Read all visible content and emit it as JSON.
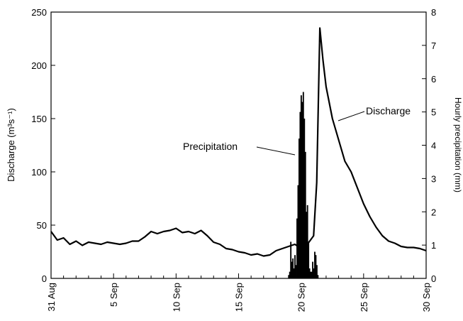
{
  "chart_data": {
    "type": "line",
    "ylabel": "Discharge (m³s⁻¹)",
    "y2label": "Hourly precipitation (mm)",
    "ylim": [
      0,
      250
    ],
    "y2lim": [
      0,
      8
    ],
    "xlim": [
      "31 Aug",
      "30 Sep"
    ],
    "y_ticks": [
      "0",
      "50",
      "100",
      "150",
      "200",
      "250"
    ],
    "y2_ticks": [
      "0",
      "1",
      "2",
      "3",
      "4",
      "5",
      "6",
      "7",
      "8"
    ],
    "x_ticks": [
      {
        "date": "31 Aug",
        "label": "31 Aug"
      },
      {
        "date": "5 Sep",
        "label": "5 Sep"
      },
      {
        "date": "10 Sep",
        "label": "10 Sep"
      },
      {
        "date": "15 Sep",
        "label": "15 Sep"
      },
      {
        "date": "20 Sep",
        "label": "20 Sep"
      },
      {
        "date": "25 Sep",
        "label": "25 Sep"
      },
      {
        "date": "30 Sep",
        "label": "30 Sep"
      }
    ],
    "grid": false,
    "annotations": [
      "Precipitation",
      "Discharge"
    ],
    "series": [
      {
        "name": "Discharge",
        "axis": "left",
        "style": "line",
        "x": [
          "31 Aug 00:00",
          "31 Aug 12:00",
          "1 Sep 00:00",
          "1 Sep 12:00",
          "2 Sep 00:00",
          "2 Sep 12:00",
          "3 Sep 00:00",
          "3 Sep 12:00",
          "4 Sep 00:00",
          "4 Sep 12:00",
          "5 Sep 00:00",
          "5 Sep 12:00",
          "6 Sep 00:00",
          "6 Sep 12:00",
          "7 Sep 00:00",
          "7 Sep 12:00",
          "8 Sep 00:00",
          "8 Sep 12:00",
          "9 Sep 00:00",
          "9 Sep 12:00",
          "10 Sep 00:00",
          "10 Sep 12:00",
          "11 Sep 00:00",
          "11 Sep 12:00",
          "12 Sep 00:00",
          "12 Sep 12:00",
          "13 Sep 00:00",
          "13 Sep 12:00",
          "14 Sep 00:00",
          "14 Sep 12:00",
          "15 Sep 00:00",
          "15 Sep 12:00",
          "16 Sep 00:00",
          "16 Sep 12:00",
          "17 Sep 00:00",
          "17 Sep 12:00",
          "18 Sep 00:00",
          "18 Sep 12:00",
          "19 Sep 00:00",
          "19 Sep 12:00",
          "20 Sep 00:00",
          "20 Sep 12:00",
          "21 Sep 00:00",
          "21 Sep 06:00",
          "21 Sep 12:00",
          "21 Sep 18:00",
          "22 Sep 00:00",
          "22 Sep 12:00",
          "23 Sep 00:00",
          "23 Sep 12:00",
          "24 Sep 00:00",
          "24 Sep 12:00",
          "25 Sep 00:00",
          "25 Sep 12:00",
          "26 Sep 00:00",
          "26 Sep 12:00",
          "27 Sep 00:00",
          "27 Sep 12:00",
          "28 Sep 00:00",
          "28 Sep 12:00",
          "29 Sep 00:00",
          "29 Sep 12:00",
          "30 Sep 00:00"
        ],
        "y": [
          44,
          36,
          38,
          32,
          35,
          31,
          34,
          33,
          32,
          34,
          33,
          32,
          33,
          35,
          35,
          39,
          44,
          42,
          44,
          45,
          47,
          43,
          44,
          42,
          45,
          40,
          34,
          32,
          28,
          27,
          25,
          24,
          22,
          23,
          21,
          22,
          26,
          28,
          30,
          32,
          28,
          32,
          40,
          90,
          235,
          205,
          180,
          150,
          130,
          110,
          100,
          85,
          70,
          58,
          48,
          40,
          35,
          33,
          30,
          29,
          29,
          28,
          26
        ]
      },
      {
        "name": "Precipitation",
        "axis": "right",
        "style": "bar",
        "x": [
          "19 Sep 00:00",
          "19 Sep 02:00",
          "19 Sep 04:00",
          "19 Sep 06:00",
          "19 Sep 08:00",
          "19 Sep 10:00",
          "19 Sep 12:00",
          "19 Sep 14:00",
          "19 Sep 16:00",
          "19 Sep 18:00",
          "19 Sep 20:00",
          "19 Sep 22:00",
          "20 Sep 00:00",
          "20 Sep 02:00",
          "20 Sep 04:00",
          "20 Sep 06:00",
          "20 Sep 08:00",
          "20 Sep 10:00",
          "20 Sep 12:00",
          "20 Sep 14:00",
          "20 Sep 16:00",
          "20 Sep 18:00",
          "20 Sep 20:00",
          "20 Sep 22:00",
          "21 Sep 00:00",
          "21 Sep 02:00",
          "21 Sep 04:00",
          "21 Sep 06:00",
          "21 Sep 08:00"
        ],
        "y": [
          0.1,
          0.2,
          1.1,
          0.5,
          0.6,
          0.3,
          0.7,
          0.4,
          1.8,
          2.8,
          4.2,
          5.0,
          5.5,
          5.3,
          5.6,
          4.8,
          3.8,
          2.0,
          2.2,
          1.1,
          0.3,
          0.2,
          0.2,
          0.5,
          0.3,
          0.8,
          0.7,
          0.4,
          0.1
        ]
      }
    ]
  }
}
